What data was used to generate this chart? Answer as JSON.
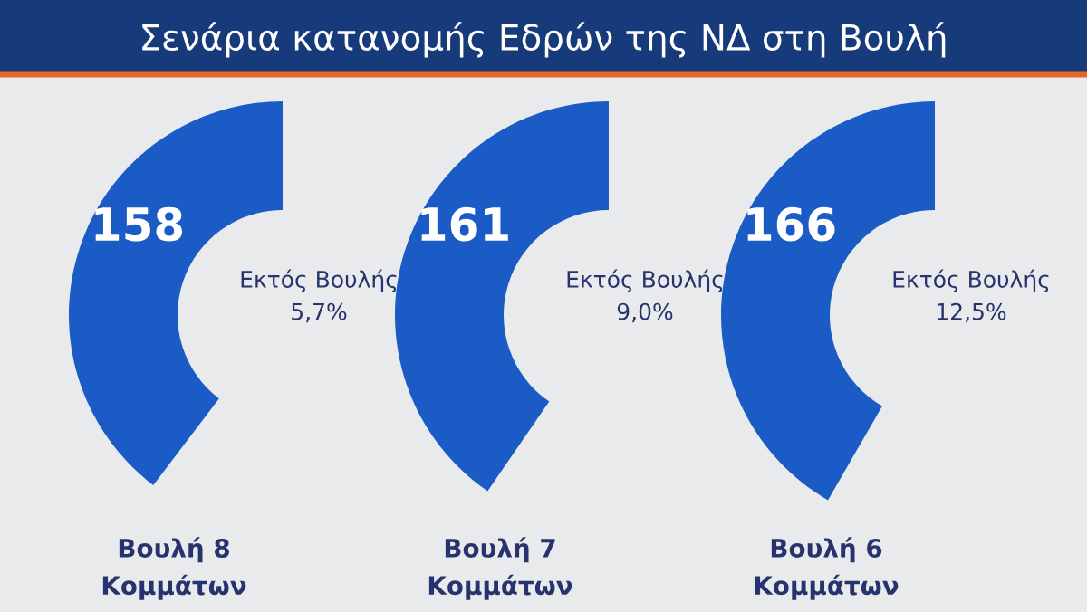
{
  "chart_data": {
    "type": "other",
    "title": "Σενάρια κατανομής Εδρών της ΝΔ στη Βουλή",
    "categories": [
      "Βουλή 8\nΚομμάτων",
      "Βουλή 7\nΚομμάτων",
      "Βουλή 6\nΚομμάτων"
    ],
    "values": [
      158,
      161,
      166
    ],
    "color": "#1a5bc6",
    "data_labels": true,
    "annotations": [
      "Εκτός Βουλής\n5,7%",
      "Εκτός Βουλής\n9,0%",
      "Εκτός Βουλής\n12,5%"
    ]
  }
}
